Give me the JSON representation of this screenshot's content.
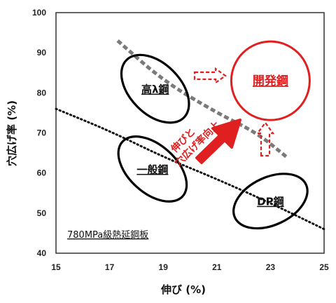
{
  "chart_data": {
    "type": "scatter",
    "xlabel": "伸び (%)",
    "ylabel": "穴広げ率 (%)",
    "xlim": [
      15,
      25
    ],
    "ylim": [
      40,
      100
    ],
    "x_ticks": [
      "15",
      "17",
      "19",
      "21",
      "23",
      "25"
    ],
    "y_ticks": [
      "40",
      "50",
      "60",
      "70",
      "80",
      "90",
      "100"
    ],
    "grid": false,
    "legend": "none",
    "regions": [
      {
        "label": "高λ鋼",
        "x": 18.7,
        "y": 81,
        "color": "#000000"
      },
      {
        "label": "一般鋼",
        "x": 18.6,
        "y": 61,
        "color": "#000000"
      },
      {
        "label": "DP鋼",
        "x": 23.0,
        "y": 53,
        "color": "#000000"
      },
      {
        "label": "開発鋼",
        "x": 23.0,
        "y": 83,
        "color": "#e02020"
      }
    ],
    "trend_lines": [
      {
        "style": "dotted",
        "color": "#111111",
        "points": [
          [
            15,
            76
          ],
          [
            17,
            70.5
          ],
          [
            19,
            64
          ],
          [
            21,
            58.5
          ],
          [
            23,
            52.5
          ],
          [
            25,
            46
          ]
        ]
      },
      {
        "style": "dashed-gray",
        "color": "#7a7a7a",
        "points": [
          [
            17.3,
            93
          ],
          [
            19,
            83
          ],
          [
            21,
            75
          ],
          [
            22.5,
            70
          ],
          [
            23.6,
            64
          ]
        ]
      }
    ],
    "annotations": {
      "arrow_text_line1": "伸びと",
      "arrow_text_line2": "穴広げ率向上",
      "note": "780MPa級熱延鋼板",
      "arrow_color": "#e02020"
    }
  }
}
